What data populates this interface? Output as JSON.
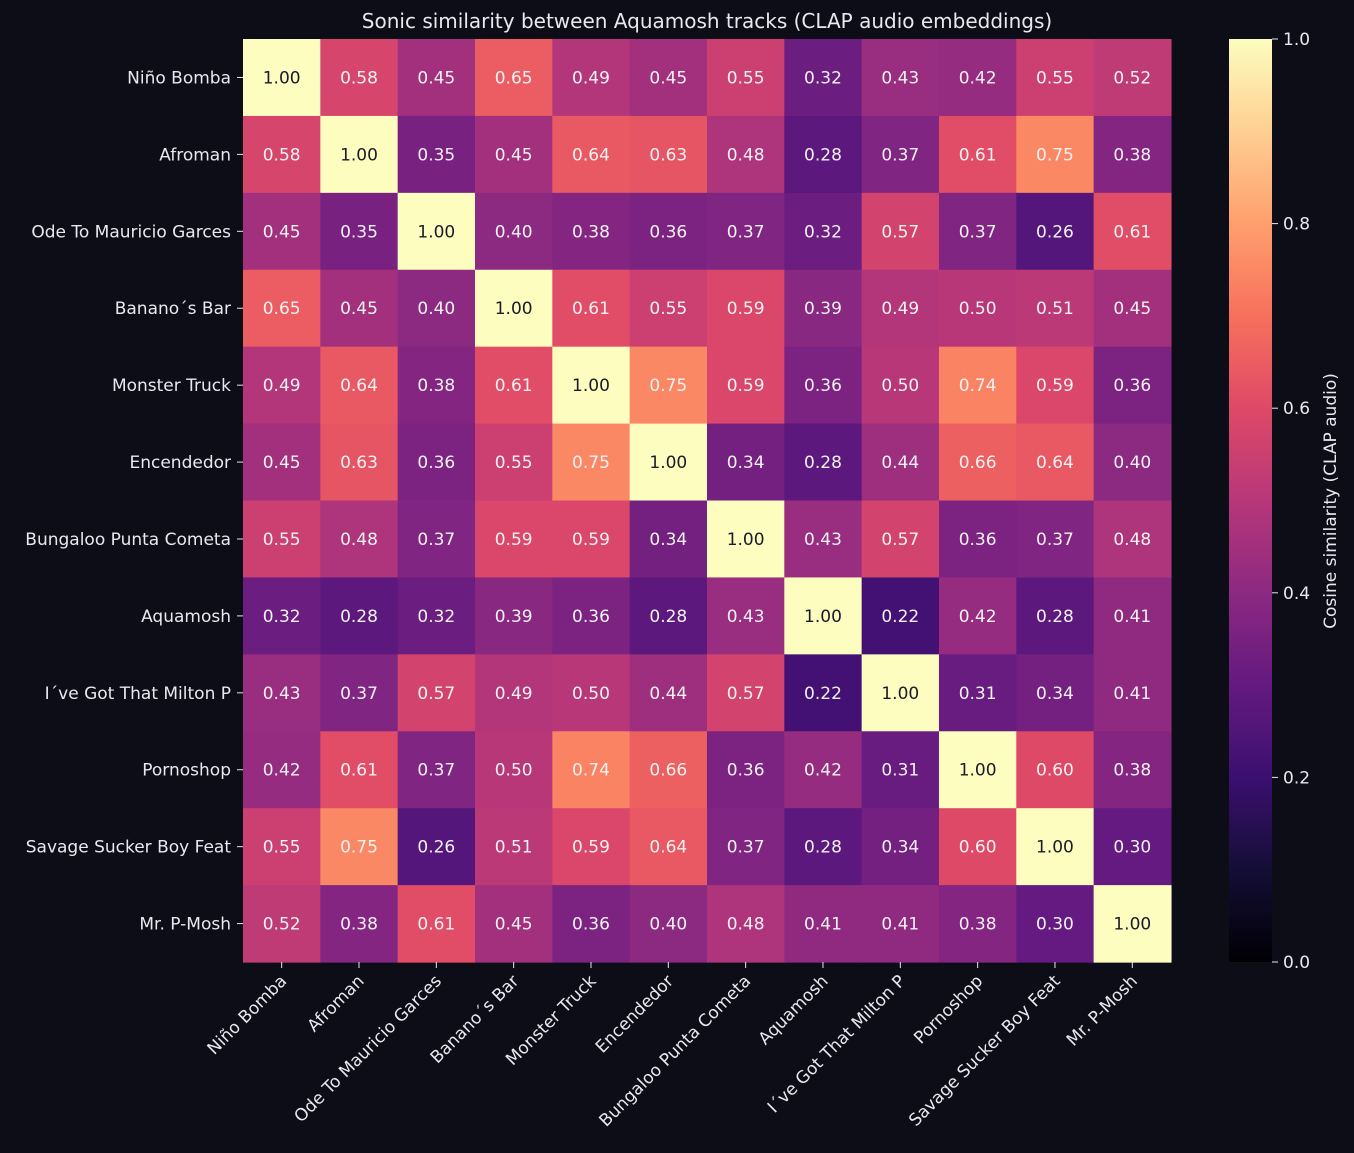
{
  "background_color": "#0d0d17",
  "text_color": "#e8e8f0",
  "colormap": "magma",
  "chart_data": {
    "type": "heatmap",
    "title": "Sonic similarity between Aquamosh tracks (CLAP audio embeddings)",
    "rows": [
      "Niño Bomba",
      "Afroman",
      "Ode To Mauricio Garces",
      "Banano´s Bar",
      "Monster Truck",
      "Encendedor",
      "Bungaloo Punta Cometa",
      "Aquamosh",
      "I´ve Got That Milton P",
      "Pornoshop",
      "Savage Sucker Boy Feat",
      "Mr. P-Mosh"
    ],
    "columns": [
      "Niño Bomba",
      "Afroman",
      "Ode To Mauricio Garces",
      "Banano´s Bar",
      "Monster Truck",
      "Encendedor",
      "Bungaloo Punta Cometa",
      "Aquamosh",
      "I´ve Got That Milton P",
      "Pornoshop",
      "Savage Sucker Boy Feat",
      "Mr. P-Mosh"
    ],
    "values": [
      [
        1.0,
        0.58,
        0.45,
        0.65,
        0.49,
        0.45,
        0.55,
        0.32,
        0.43,
        0.42,
        0.55,
        0.52
      ],
      [
        0.58,
        1.0,
        0.35,
        0.45,
        0.64,
        0.63,
        0.48,
        0.28,
        0.37,
        0.61,
        0.75,
        0.38
      ],
      [
        0.45,
        0.35,
        1.0,
        0.4,
        0.38,
        0.36,
        0.37,
        0.32,
        0.57,
        0.37,
        0.26,
        0.61
      ],
      [
        0.65,
        0.45,
        0.4,
        1.0,
        0.61,
        0.55,
        0.59,
        0.39,
        0.49,
        0.5,
        0.51,
        0.45
      ],
      [
        0.49,
        0.64,
        0.38,
        0.61,
        1.0,
        0.75,
        0.59,
        0.36,
        0.5,
        0.74,
        0.59,
        0.36
      ],
      [
        0.45,
        0.63,
        0.36,
        0.55,
        0.75,
        1.0,
        0.34,
        0.28,
        0.44,
        0.66,
        0.64,
        0.4
      ],
      [
        0.55,
        0.48,
        0.37,
        0.59,
        0.59,
        0.34,
        1.0,
        0.43,
        0.57,
        0.36,
        0.37,
        0.48
      ],
      [
        0.32,
        0.28,
        0.32,
        0.39,
        0.36,
        0.28,
        0.43,
        1.0,
        0.22,
        0.42,
        0.28,
        0.41
      ],
      [
        0.43,
        0.37,
        0.57,
        0.49,
        0.5,
        0.44,
        0.57,
        0.22,
        1.0,
        0.31,
        0.34,
        0.41
      ],
      [
        0.42,
        0.61,
        0.37,
        0.5,
        0.74,
        0.66,
        0.36,
        0.42,
        0.31,
        1.0,
        0.6,
        0.38
      ],
      [
        0.55,
        0.75,
        0.26,
        0.51,
        0.59,
        0.64,
        0.37,
        0.28,
        0.34,
        0.6,
        1.0,
        0.3
      ],
      [
        0.52,
        0.38,
        0.61,
        0.45,
        0.36,
        0.4,
        0.48,
        0.41,
        0.41,
        0.38,
        0.3,
        1.0
      ]
    ],
    "value_format": "2 decimals",
    "vmin": 0.0,
    "vmax": 1.0,
    "colorbar": {
      "label": "Cosine similarity (CLAP audio)",
      "ticks": [
        0.0,
        0.2,
        0.4,
        0.6,
        0.8,
        1.0
      ],
      "tick_labels": [
        "0.0",
        "0.2",
        "0.4",
        "0.6",
        "0.8",
        "1.0"
      ]
    },
    "grid": false,
    "legend": "colorbar-right"
  }
}
